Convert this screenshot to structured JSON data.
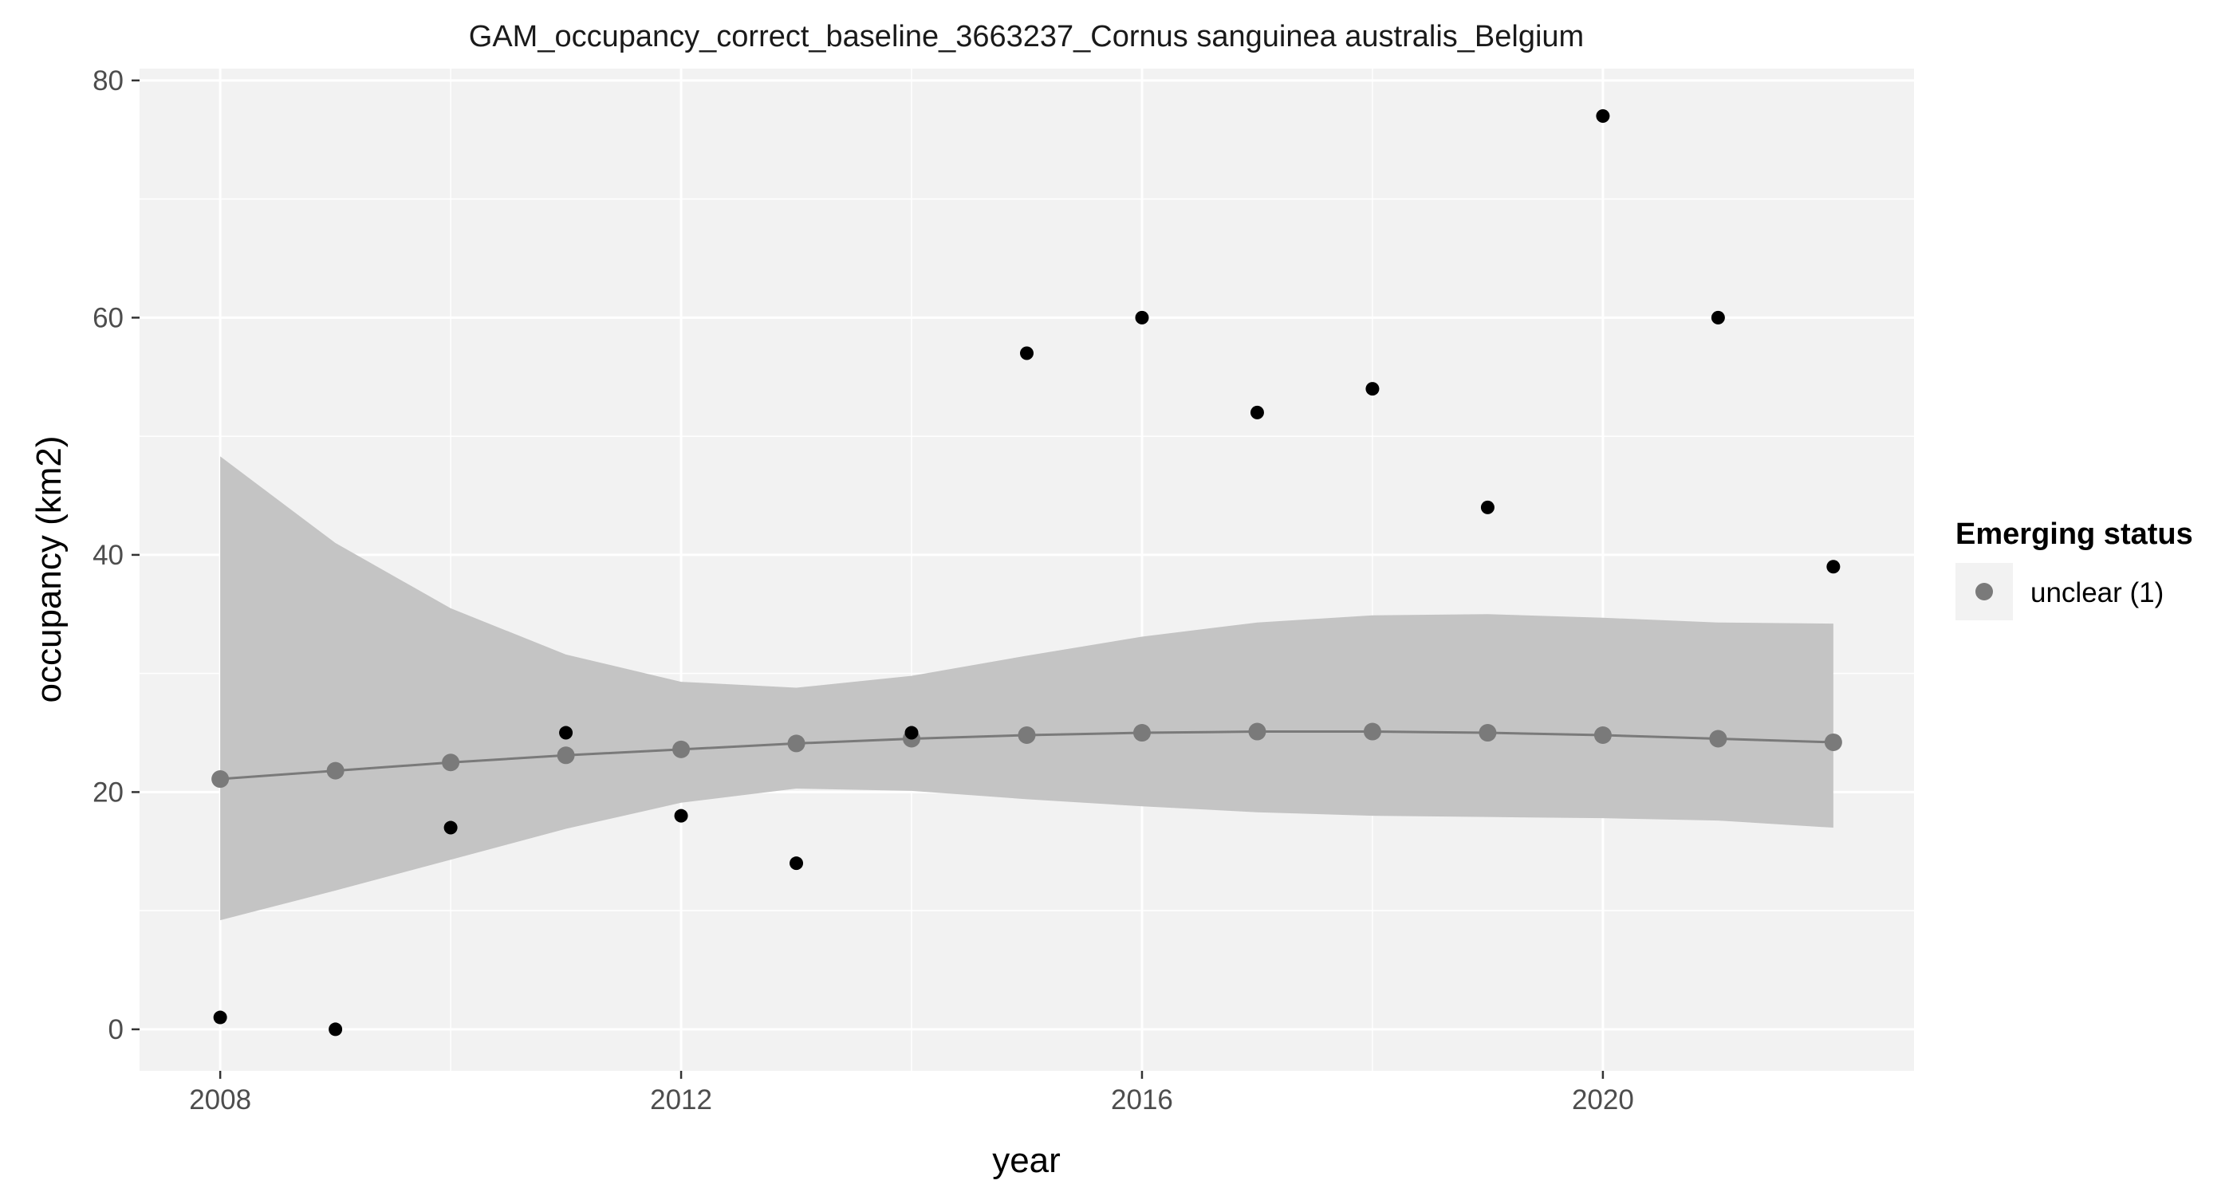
{
  "chart_data": {
    "type": "scatter",
    "title": "GAM_occupancy_correct_baseline_3663237_Cornus sanguinea australis_Belgium",
    "xlabel": "year",
    "ylabel": "occupancy (km2)",
    "xlim": [
      2007.3,
      2022.7
    ],
    "ylim": [
      -3.5,
      81
    ],
    "x_ticks": [
      2008,
      2012,
      2016,
      2020
    ],
    "y_ticks": [
      0,
      20,
      40,
      60,
      80
    ],
    "grid": true,
    "legend": {
      "title": "Emerging status",
      "position": "right",
      "entries": [
        "unclear (1)"
      ]
    },
    "colors": {
      "panel": "#f2f2f2",
      "grid": "#ffffff",
      "ribbon": "#c4c4c4",
      "fit": "#7a7a7a",
      "observed": "#000000"
    },
    "observed": {
      "x": [
        2008,
        2009,
        2010,
        2011,
        2012,
        2013,
        2014,
        2015,
        2016,
        2017,
        2018,
        2019,
        2020,
        2021,
        2022
      ],
      "y": [
        1,
        0,
        17,
        25,
        18,
        14,
        25,
        57,
        60,
        52,
        54,
        44,
        77,
        60,
        39
      ]
    },
    "series": [
      {
        "name": "unclear (1)",
        "x": [
          2008,
          2009,
          2010,
          2011,
          2012,
          2013,
          2014,
          2015,
          2016,
          2017,
          2018,
          2019,
          2020,
          2021,
          2022
        ],
        "fit": [
          21.1,
          21.8,
          22.5,
          23.1,
          23.6,
          24.1,
          24.5,
          24.8,
          25.0,
          25.1,
          25.1,
          25.0,
          24.8,
          24.5,
          24.2
        ],
        "lower": [
          9.2,
          11.7,
          14.3,
          16.9,
          19.1,
          20.3,
          20.1,
          19.4,
          18.8,
          18.3,
          18.0,
          17.9,
          17.8,
          17.6,
          17.0
        ],
        "upper": [
          48.3,
          41.0,
          35.5,
          31.6,
          29.3,
          28.8,
          29.8,
          31.5,
          33.1,
          34.3,
          34.9,
          35.0,
          34.7,
          34.3,
          34.2
        ]
      }
    ]
  }
}
